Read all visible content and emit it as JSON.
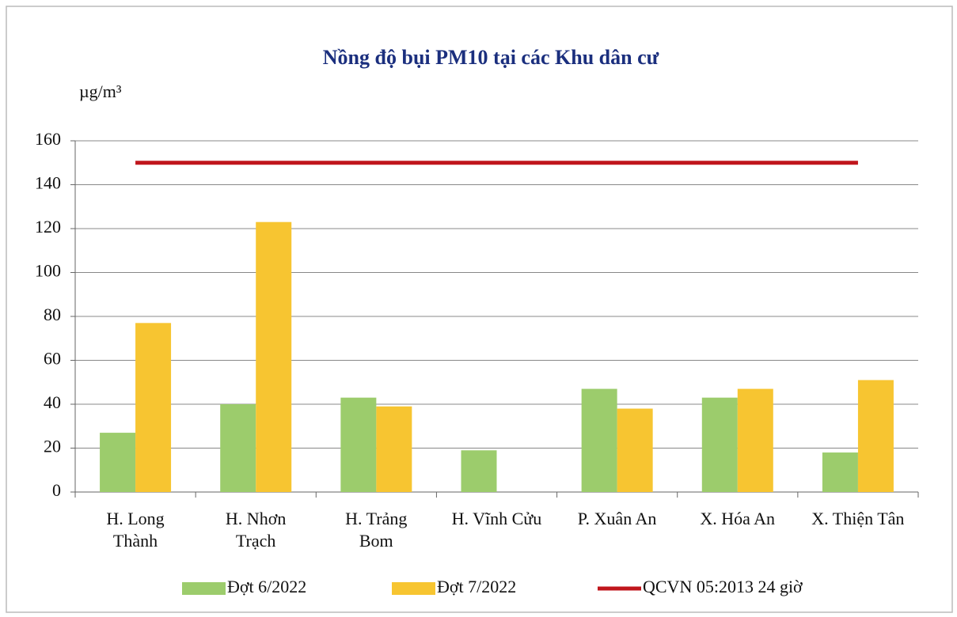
{
  "chart_data": {
    "type": "bar",
    "title": "Nồng độ bụi PM10 tại các Khu dân cư",
    "y_label": "µg/m³",
    "categories": [
      "H. Long\nThành",
      "H. Nhơn\nTrạch",
      "H. Trảng\nBom",
      "H. Vĩnh Cửu",
      "P. Xuân An",
      "X. Hóa An",
      "X. Thiện Tân"
    ],
    "series": [
      {
        "name": "Đợt 6/2022",
        "color": "#9ccc6c",
        "values": [
          27,
          40,
          43,
          19,
          47,
          43,
          18
        ]
      },
      {
        "name": "Đợt 7/2022",
        "color": "#f7c531",
        "values": [
          77,
          123,
          39,
          null,
          38,
          47,
          51
        ]
      },
      {
        "name": "QCVN 05:2013 24 giờ",
        "color": "#c0161c",
        "type": "line",
        "values": [
          150,
          150,
          150,
          150,
          150,
          150,
          150
        ]
      }
    ],
    "ylim": [
      0,
      160
    ],
    "yticks": [
      0,
      20,
      40,
      60,
      80,
      100,
      120,
      140,
      160
    ],
    "grid": true,
    "legend": "bottom"
  }
}
